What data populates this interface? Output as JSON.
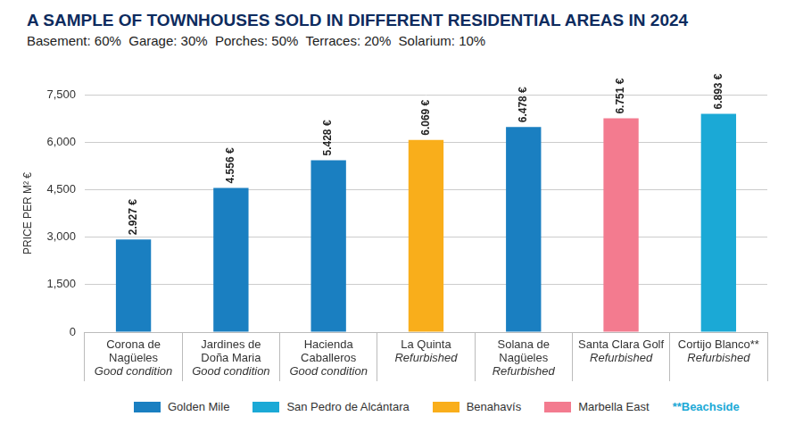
{
  "chart_data": {
    "type": "bar",
    "title": "A SAMPLE OF TOWNHOUSES SOLD IN DIFFERENT RESIDENTIAL AREAS IN 2024",
    "subtitle": "Basement: 60%  Garage: 30%  Porches: 50%  Terraces: 20%  Solarium: 10%",
    "y_label": "PRICE PER M² €",
    "categories": [
      [
        "Corona de Nagüeles",
        "Good condition"
      ],
      [
        "Jardines de Doña Maria",
        "Good condition"
      ],
      [
        "Hacienda Caballeros",
        "Good condition"
      ],
      [
        "La Quinta",
        "Refurbished"
      ],
      [
        "Solana de Nagüeles",
        "Refurbished"
      ],
      [
        "Santa Clara Golf",
        "Refurbished"
      ],
      [
        "Cortijo Blanco**",
        "Refurbished"
      ]
    ],
    "series": [
      {
        "name": "Golden Mile",
        "color": "#1a7fc1",
        "values": [
          2927,
          4556,
          5428,
          null,
          6478,
          null,
          null
        ],
        "value_labels": [
          "2.927 €",
          "4.556 €",
          "5.428 €",
          null,
          "6.478 €",
          null,
          null
        ]
      },
      {
        "name": "San Pedro de Alcántara",
        "color": "#1ba9d6",
        "values": [
          null,
          null,
          null,
          null,
          null,
          null,
          6893
        ],
        "value_labels": [
          null,
          null,
          null,
          null,
          null,
          null,
          "6.893 €"
        ]
      },
      {
        "name": "Benahavís",
        "color": "#f9ae1b",
        "values": [
          null,
          null,
          null,
          6069,
          null,
          null,
          null
        ],
        "value_labels": [
          null,
          null,
          null,
          "6.069 €",
          null,
          null,
          null
        ]
      },
      {
        "name": "Marbella East",
        "color": "#f37b8f",
        "values": [
          null,
          null,
          null,
          null,
          null,
          6751,
          null
        ],
        "value_labels": [
          null,
          null,
          null,
          null,
          null,
          "6.751 €",
          null
        ]
      }
    ],
    "stacked": true,
    "ylim": [
      0,
      7500
    ],
    "yticks": [
      0,
      {
        "value": 1500,
        "label": "1,500"
      },
      {
        "value": 3000,
        "label": "3,000"
      },
      {
        "value": 4500,
        "label": "4,500"
      },
      {
        "value": 6000,
        "label": "6,000"
      },
      {
        "value": 7500,
        "label": "7,500"
      }
    ],
    "grid": true,
    "data_labels": true,
    "legend": "bottom",
    "annotations": [
      "**Beachside"
    ]
  }
}
